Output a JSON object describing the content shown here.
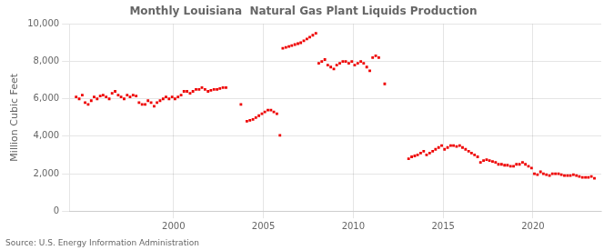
{
  "chart_data": {
    "type": "scatter",
    "title": "Monthly Louisiana  Natural Gas Plant Liquids Production",
    "y_label": "Million Cubic Feet",
    "annotations": [
      "Source: U.S. Energy Information Administration"
    ],
    "color": "#EE0000",
    "marker": "square",
    "grid": true,
    "xlim": [
      1994.2,
      2023.8
    ],
    "xticks": [
      2000,
      2005,
      2010,
      2015,
      2020
    ],
    "ylim": [
      0,
      10000
    ],
    "yticks": [
      0,
      {
        "value": 2000,
        "label": "2,000"
      },
      {
        "value": 4000,
        "label": "4,000"
      },
      {
        "value": 6000,
        "label": "6,000"
      },
      {
        "value": 8000,
        "label": "8,000"
      },
      {
        "value": 10000,
        "label": "10,000"
      }
    ],
    "x": [
      1994.58,
      1994.75,
      1994.92,
      1995.08,
      1995.25,
      1995.42,
      1995.58,
      1995.75,
      1995.92,
      1996.08,
      1996.25,
      1996.42,
      1996.58,
      1996.75,
      1996.92,
      1997.08,
      1997.25,
      1997.42,
      1997.58,
      1997.75,
      1997.92,
      1998.08,
      1998.25,
      1998.42,
      1998.58,
      1998.75,
      1998.92,
      1999.08,
      1999.25,
      1999.42,
      1999.58,
      1999.75,
      1999.92,
      2000.08,
      2000.25,
      2000.42,
      2000.58,
      2000.75,
      2000.92,
      2001.08,
      2001.25,
      2001.42,
      2001.58,
      2001.75,
      2001.92,
      2002.08,
      2002.25,
      2002.42,
      2002.58,
      2002.75,
      2002.92,
      2003.75,
      2004.08,
      2004.25,
      2004.42,
      2004.58,
      2004.75,
      2004.92,
      2005.08,
      2005.25,
      2005.42,
      2005.58,
      2005.75,
      2005.92,
      2006.08,
      2006.25,
      2006.42,
      2006.58,
      2006.75,
      2006.92,
      2007.08,
      2007.25,
      2007.42,
      2007.58,
      2007.75,
      2007.92,
      2008.08,
      2008.25,
      2008.42,
      2008.58,
      2008.75,
      2008.92,
      2009.08,
      2009.25,
      2009.42,
      2009.58,
      2009.75,
      2009.92,
      2010.08,
      2010.25,
      2010.42,
      2010.58,
      2010.75,
      2010.92,
      2011.08,
      2011.25,
      2011.42,
      2011.75,
      2013.08,
      2013.25,
      2013.42,
      2013.58,
      2013.75,
      2013.92,
      2014.08,
      2014.25,
      2014.42,
      2014.58,
      2014.75,
      2014.92,
      2015.08,
      2015.25,
      2015.42,
      2015.58,
      2015.75,
      2015.92,
      2016.08,
      2016.25,
      2016.42,
      2016.58,
      2016.75,
      2016.92,
      2017.08,
      2017.25,
      2017.42,
      2017.58,
      2017.75,
      2017.92,
      2018.08,
      2018.25,
      2018.42,
      2018.58,
      2018.75,
      2018.92,
      2019.08,
      2019.25,
      2019.42,
      2019.58,
      2019.75,
      2019.92,
      2020.08,
      2020.25,
      2020.42,
      2020.58,
      2020.75,
      2020.92,
      2021.08,
      2021.25,
      2021.42,
      2021.58,
      2021.75,
      2021.92,
      2022.08,
      2022.25,
      2022.42,
      2022.58,
      2022.75,
      2022.92,
      2023.08,
      2023.25,
      2023.42
    ],
    "values": [
      6100,
      6000,
      6200,
      5800,
      5700,
      5900,
      6100,
      6000,
      6150,
      6200,
      6100,
      6000,
      6300,
      6400,
      6200,
      6100,
      6000,
      6200,
      6100,
      6200,
      6150,
      5800,
      5700,
      5700,
      5900,
      5800,
      5600,
      5800,
      5900,
      6000,
      6100,
      6000,
      6100,
      6000,
      6100,
      6200,
      6400,
      6400,
      6300,
      6400,
      6500,
      6500,
      6600,
      6500,
      6400,
      6450,
      6500,
      6500,
      6550,
      6600,
      6600,
      5700,
      4800,
      4850,
      4900,
      5000,
      5100,
      5200,
      5300,
      5400,
      5400,
      5300,
      5200,
      4050,
      8700,
      8750,
      8800,
      8850,
      8900,
      8950,
      9000,
      9100,
      9200,
      9300,
      9400,
      9500,
      7900,
      8000,
      8100,
      7800,
      7700,
      7600,
      7800,
      7900,
      8000,
      8000,
      7900,
      8000,
      7800,
      7900,
      8000,
      7900,
      7700,
      7500,
      8200,
      8300,
      8200,
      6800,
      2800,
      2900,
      2950,
      3000,
      3100,
      3200,
      3000,
      3100,
      3200,
      3300,
      3400,
      3500,
      3300,
      3400,
      3500,
      3500,
      3450,
      3500,
      3400,
      3300,
      3200,
      3100,
      3000,
      2900,
      2600,
      2700,
      2750,
      2700,
      2650,
      2600,
      2500,
      2500,
      2450,
      2450,
      2400,
      2400,
      2500,
      2500,
      2600,
      2500,
      2400,
      2300,
      2000,
      1950,
      2100,
      2000,
      1950,
      1900,
      2000,
      2000,
      2000,
      1950,
      1900,
      1900,
      1900,
      1950,
      1900,
      1850,
      1800,
      1800,
      1800,
      1850,
      1750
    ]
  }
}
